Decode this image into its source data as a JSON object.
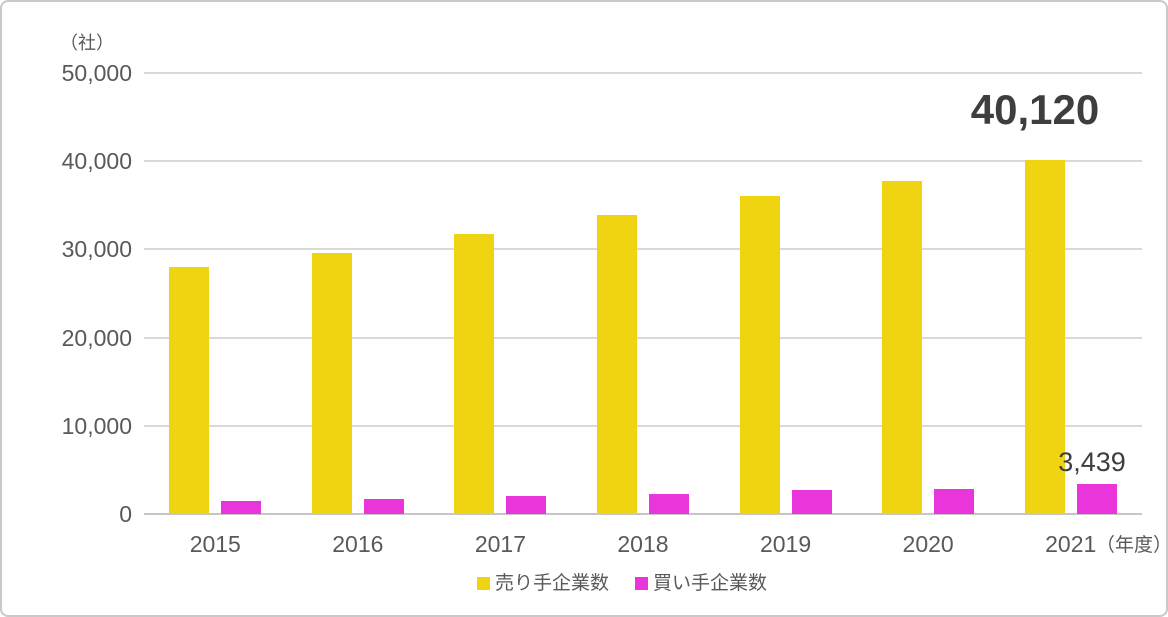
{
  "chart_data": {
    "type": "bar",
    "title": "",
    "unit_label": "（社）",
    "x_axis_unit_label": "（年度）",
    "categories": [
      "2015",
      "2016",
      "2017",
      "2018",
      "2019",
      "2020",
      "2021"
    ],
    "series": [
      {
        "name": "売り手企業数",
        "color": "#f0d311",
        "values": [
          28000,
          29600,
          31800,
          33900,
          36000,
          37800,
          40120
        ]
      },
      {
        "name": "買い手企業数",
        "color": "#e935da",
        "values": [
          1500,
          1750,
          2050,
          2300,
          2700,
          2850,
          3439
        ]
      }
    ],
    "ylim": [
      0,
      50000
    ],
    "ytick_step": 10000,
    "ytick_labels": [
      "0",
      "10,000",
      "20,000",
      "30,000",
      "40,000",
      "50,000"
    ],
    "grid": true,
    "legend_position": "bottom-center",
    "annotations": [
      {
        "text": "40,120",
        "series": "売り手企業数",
        "category": "2021",
        "style": "large-bold"
      },
      {
        "text": "3,439",
        "series": "買い手企業数",
        "category": "2021",
        "style": "regular"
      }
    ]
  },
  "colors": {
    "seller_bar": "#f0d311",
    "buyer_bar": "#e935da",
    "gridline": "#d9d9d9",
    "axis_line": "#c6c6c6",
    "axis_text": "#595959",
    "annotation_text": "#3e3e3e",
    "frame_border": "#c9c9c9",
    "background": "#ffffff"
  }
}
